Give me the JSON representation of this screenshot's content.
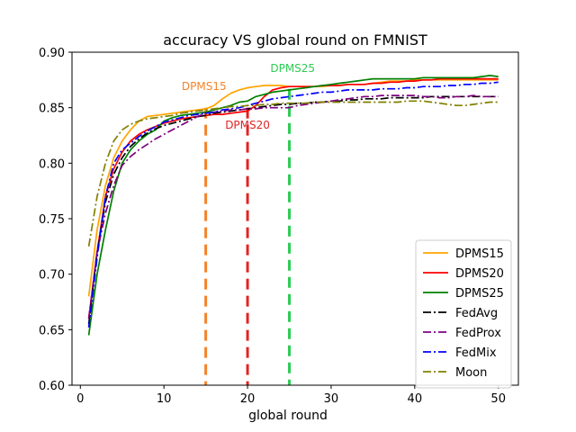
{
  "chart_data": {
    "type": "line",
    "title": "accuracy VS global round on FMNIST",
    "xlabel": "global round",
    "ylabel": "",
    "xlim": [
      -1,
      52.4
    ],
    "ylim": [
      0.6,
      0.9
    ],
    "xticks": [
      0,
      10,
      20,
      30,
      40,
      50
    ],
    "yticks": [
      0.6,
      0.65,
      0.7,
      0.75,
      0.8,
      0.85,
      0.9
    ],
    "grid": false,
    "legend_position": "lower-right",
    "series": [
      {
        "name": "DPMS15",
        "color": "#ffa500",
        "style": "solid",
        "x": [
          1,
          2,
          3,
          4,
          5,
          6,
          7,
          8,
          9,
          10,
          11,
          12,
          13,
          14,
          15,
          16,
          17,
          18,
          19,
          20,
          21,
          22,
          23,
          24,
          25,
          26,
          27,
          28,
          29,
          30,
          31,
          32,
          33,
          34,
          35,
          36,
          37,
          38,
          39,
          40,
          41,
          42,
          43,
          44,
          45,
          46,
          47,
          48,
          49,
          50
        ],
        "values": [
          0.68,
          0.74,
          0.78,
          0.805,
          0.82,
          0.83,
          0.838,
          0.842,
          0.843,
          0.844,
          0.845,
          0.846,
          0.847,
          0.848,
          0.849,
          0.852,
          0.858,
          0.863,
          0.866,
          0.868,
          0.869,
          0.87,
          0.87,
          0.87,
          0.869,
          0.869,
          0.869,
          0.869,
          0.869,
          0.87,
          0.87,
          0.871,
          0.871,
          0.871,
          0.872,
          0.873,
          0.874,
          0.874,
          0.874,
          0.875,
          0.875,
          0.875,
          0.875,
          0.875,
          0.875,
          0.875,
          0.875,
          0.875,
          0.875,
          0.875
        ]
      },
      {
        "name": "DPMS20",
        "color": "#ff0000",
        "style": "solid",
        "x": [
          1,
          2,
          3,
          4,
          5,
          6,
          7,
          8,
          9,
          10,
          11,
          12,
          13,
          14,
          15,
          16,
          17,
          18,
          19,
          20,
          21,
          22,
          23,
          24,
          25,
          26,
          27,
          28,
          29,
          30,
          31,
          32,
          33,
          34,
          35,
          36,
          37,
          38,
          39,
          40,
          41,
          42,
          43,
          44,
          45,
          46,
          47,
          48,
          49,
          50
        ],
        "values": [
          0.66,
          0.72,
          0.77,
          0.795,
          0.81,
          0.82,
          0.826,
          0.83,
          0.833,
          0.836,
          0.838,
          0.84,
          0.841,
          0.842,
          0.843,
          0.844,
          0.844,
          0.845,
          0.846,
          0.847,
          0.852,
          0.86,
          0.866,
          0.868,
          0.869,
          0.869,
          0.869,
          0.869,
          0.87,
          0.87,
          0.87,
          0.871,
          0.871,
          0.871,
          0.872,
          0.872,
          0.873,
          0.873,
          0.874,
          0.874,
          0.875,
          0.875,
          0.876,
          0.876,
          0.876,
          0.876,
          0.876,
          0.876,
          0.876,
          0.876
        ]
      },
      {
        "name": "DPMS25",
        "color": "#008000",
        "style": "solid",
        "x": [
          1,
          2,
          3,
          4,
          5,
          6,
          7,
          8,
          9,
          10,
          11,
          12,
          13,
          14,
          15,
          16,
          17,
          18,
          19,
          20,
          21,
          22,
          23,
          24,
          25,
          26,
          27,
          28,
          29,
          30,
          31,
          32,
          33,
          34,
          35,
          36,
          37,
          38,
          39,
          40,
          41,
          42,
          43,
          44,
          45,
          46,
          47,
          48,
          49,
          50
        ],
        "values": [
          0.645,
          0.7,
          0.74,
          0.775,
          0.8,
          0.812,
          0.82,
          0.826,
          0.83,
          0.838,
          0.841,
          0.843,
          0.844,
          0.845,
          0.846,
          0.848,
          0.85,
          0.852,
          0.855,
          0.856,
          0.86,
          0.862,
          0.864,
          0.865,
          0.866,
          0.867,
          0.868,
          0.869,
          0.87,
          0.871,
          0.872,
          0.873,
          0.874,
          0.875,
          0.876,
          0.876,
          0.876,
          0.876,
          0.876,
          0.876,
          0.877,
          0.877,
          0.877,
          0.877,
          0.877,
          0.877,
          0.877,
          0.878,
          0.879,
          0.878
        ]
      },
      {
        "name": "FedAvg",
        "color": "#000000",
        "style": "dashdot",
        "x": [
          1,
          2,
          3,
          4,
          5,
          6,
          7,
          8,
          9,
          10,
          11,
          12,
          13,
          14,
          15,
          16,
          17,
          18,
          19,
          20,
          21,
          22,
          23,
          24,
          25,
          26,
          27,
          28,
          29,
          30,
          31,
          32,
          33,
          34,
          35,
          36,
          37,
          38,
          39,
          40,
          41,
          42,
          43,
          44,
          45,
          46,
          47,
          48,
          49,
          50
        ],
        "values": [
          0.655,
          0.72,
          0.765,
          0.79,
          0.805,
          0.815,
          0.822,
          0.827,
          0.831,
          0.834,
          0.836,
          0.838,
          0.84,
          0.842,
          0.843,
          0.845,
          0.846,
          0.847,
          0.848,
          0.849,
          0.85,
          0.851,
          0.852,
          0.853,
          0.853,
          0.854,
          0.854,
          0.855,
          0.855,
          0.856,
          0.856,
          0.857,
          0.857,
          0.858,
          0.858,
          0.858,
          0.859,
          0.859,
          0.859,
          0.859,
          0.859,
          0.86,
          0.86,
          0.86,
          0.86,
          0.86,
          0.86,
          0.86,
          0.86,
          0.86
        ]
      },
      {
        "name": "FedProx",
        "color": "#800080",
        "style": "dashdot",
        "x": [
          1,
          2,
          3,
          4,
          5,
          6,
          7,
          8,
          9,
          10,
          11,
          12,
          13,
          14,
          15,
          16,
          17,
          18,
          19,
          20,
          21,
          22,
          23,
          24,
          25,
          26,
          27,
          28,
          29,
          30,
          31,
          32,
          33,
          34,
          35,
          36,
          37,
          38,
          39,
          40,
          41,
          42,
          43,
          44,
          45,
          46,
          47,
          48,
          49,
          50
        ],
        "values": [
          0.66,
          0.72,
          0.755,
          0.78,
          0.798,
          0.806,
          0.812,
          0.817,
          0.822,
          0.826,
          0.83,
          0.834,
          0.838,
          0.842,
          0.845,
          0.846,
          0.847,
          0.848,
          0.848,
          0.849,
          0.849,
          0.85,
          0.85,
          0.85,
          0.85,
          0.852,
          0.853,
          0.854,
          0.855,
          0.856,
          0.857,
          0.858,
          0.859,
          0.86,
          0.86,
          0.861,
          0.861,
          0.861,
          0.861,
          0.861,
          0.86,
          0.86,
          0.859,
          0.859,
          0.86,
          0.86,
          0.861,
          0.86,
          0.86,
          0.86
        ]
      },
      {
        "name": "FedMix",
        "color": "#0000ff",
        "style": "dashdot",
        "x": [
          1,
          2,
          3,
          4,
          5,
          6,
          7,
          8,
          9,
          10,
          11,
          12,
          13,
          14,
          15,
          16,
          17,
          18,
          19,
          20,
          21,
          22,
          23,
          24,
          25,
          26,
          27,
          28,
          29,
          30,
          31,
          32,
          33,
          34,
          35,
          36,
          37,
          38,
          39,
          40,
          41,
          42,
          43,
          44,
          45,
          46,
          47,
          48,
          49,
          50
        ],
        "values": [
          0.652,
          0.715,
          0.77,
          0.8,
          0.812,
          0.818,
          0.824,
          0.829,
          0.833,
          0.837,
          0.839,
          0.841,
          0.843,
          0.844,
          0.845,
          0.846,
          0.848,
          0.849,
          0.85,
          0.852,
          0.854,
          0.856,
          0.858,
          0.859,
          0.86,
          0.861,
          0.862,
          0.863,
          0.864,
          0.864,
          0.865,
          0.866,
          0.866,
          0.866,
          0.866,
          0.867,
          0.867,
          0.867,
          0.868,
          0.868,
          0.869,
          0.869,
          0.869,
          0.87,
          0.87,
          0.871,
          0.871,
          0.872,
          0.872,
          0.873
        ]
      },
      {
        "name": "Moon",
        "color": "#808000",
        "style": "dashdot",
        "x": [
          1,
          2,
          3,
          4,
          5,
          6,
          7,
          8,
          9,
          10,
          11,
          12,
          13,
          14,
          15,
          16,
          17,
          18,
          19,
          20,
          21,
          22,
          23,
          24,
          25,
          26,
          27,
          28,
          29,
          30,
          31,
          32,
          33,
          34,
          35,
          36,
          37,
          38,
          39,
          40,
          41,
          42,
          43,
          44,
          45,
          46,
          47,
          48,
          49,
          50
        ],
        "values": [
          0.725,
          0.77,
          0.8,
          0.82,
          0.83,
          0.835,
          0.838,
          0.84,
          0.841,
          0.842,
          0.843,
          0.845,
          0.846,
          0.847,
          0.848,
          0.849,
          0.85,
          0.851,
          0.851,
          0.852,
          0.852,
          0.853,
          0.853,
          0.854,
          0.854,
          0.854,
          0.854,
          0.855,
          0.855,
          0.855,
          0.855,
          0.855,
          0.855,
          0.855,
          0.855,
          0.855,
          0.855,
          0.855,
          0.856,
          0.856,
          0.856,
          0.855,
          0.854,
          0.853,
          0.852,
          0.852,
          0.853,
          0.854,
          0.855,
          0.855
        ]
      }
    ],
    "annotations": [
      {
        "label": "DPMS15",
        "x": 15,
        "y_top": 0.85,
        "color": "#f5832a",
        "text_color": "#f5832a",
        "text_x": 14.8,
        "text_y": 0.866
      },
      {
        "label": "DPMS20",
        "x": 20,
        "y_top": 0.85,
        "color": "#e02424",
        "text_color": "#e02424",
        "text_x": 20.0,
        "text_y": 0.831
      },
      {
        "label": "DPMS25",
        "x": 25,
        "y_top": 0.867,
        "color": "#2ecc55",
        "text_color": "#2ecc55",
        "text_x": 25.4,
        "text_y": 0.882
      }
    ]
  }
}
